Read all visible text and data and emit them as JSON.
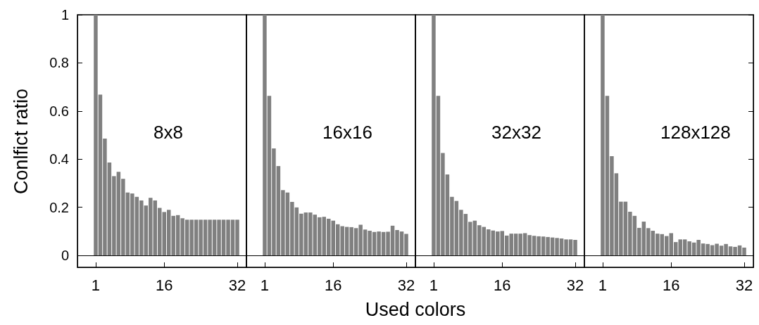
{
  "chart_data": [
    {
      "type": "bar",
      "ylabel": "Conlfict ratio",
      "annotations": [
        "8x8"
      ],
      "color": "#808080",
      "x": [
        1,
        2,
        3,
        4,
        5,
        6,
        7,
        8,
        9,
        10,
        11,
        12,
        13,
        14,
        15,
        16,
        17,
        18,
        19,
        20,
        21,
        22,
        23,
        24,
        25,
        26,
        27,
        28,
        29,
        30,
        31,
        32
      ],
      "values": [
        1.0,
        0.668,
        0.485,
        0.386,
        0.329,
        0.347,
        0.318,
        0.261,
        0.257,
        0.243,
        0.228,
        0.207,
        0.239,
        0.228,
        0.197,
        0.18,
        0.189,
        0.164,
        0.167,
        0.154,
        0.148,
        0.148,
        0.148,
        0.148,
        0.148,
        0.148,
        0.148,
        0.148,
        0.148,
        0.148,
        0.148,
        0.148
      ],
      "xlim": [
        -3,
        34
      ],
      "xticks": [
        1,
        16,
        32
      ],
      "ylim": [
        -0.05,
        1
      ],
      "yticks": [
        0,
        0.2,
        0.4,
        0.6,
        0.8,
        1
      ],
      "grid": false,
      "ref_lines": [
        {
          "axis": "y",
          "value": 0,
          "color": "#000000"
        }
      ]
    },
    {
      "type": "bar",
      "xlabel": "Used colors",
      "annotations": [
        "16x16"
      ],
      "color": "#808080",
      "x": [
        1,
        2,
        3,
        4,
        5,
        6,
        7,
        8,
        9,
        10,
        11,
        12,
        13,
        14,
        15,
        16,
        17,
        18,
        19,
        20,
        21,
        22,
        23,
        24,
        25,
        26,
        27,
        28,
        29,
        30,
        31,
        32
      ],
      "values": [
        1.0,
        0.663,
        0.444,
        0.371,
        0.271,
        0.261,
        0.222,
        0.199,
        0.173,
        0.178,
        0.178,
        0.169,
        0.158,
        0.16,
        0.152,
        0.144,
        0.129,
        0.121,
        0.118,
        0.117,
        0.113,
        0.127,
        0.107,
        0.102,
        0.097,
        0.099,
        0.097,
        0.098,
        0.123,
        0.105,
        0.099,
        0.089
      ],
      "xlim": [
        -3,
        34
      ],
      "xticks": [
        1,
        16,
        32
      ],
      "ylim": [
        -0.05,
        1
      ],
      "yticks": [
        0,
        0.2,
        0.4,
        0.6,
        0.8,
        1
      ],
      "grid": false,
      "tick_labels": "x",
      "ref_lines": [
        {
          "axis": "y",
          "value": 0,
          "color": "#000000"
        }
      ]
    },
    {
      "type": "bar",
      "annotations": [
        "32x32"
      ],
      "color": "#808080",
      "x": [
        1,
        2,
        3,
        4,
        5,
        6,
        7,
        8,
        9,
        10,
        11,
        12,
        13,
        14,
        15,
        16,
        17,
        18,
        19,
        20,
        21,
        22,
        23,
        24,
        25,
        26,
        27,
        28,
        29,
        30,
        31,
        32
      ],
      "values": [
        1.0,
        0.663,
        0.425,
        0.336,
        0.243,
        0.226,
        0.189,
        0.172,
        0.139,
        0.144,
        0.125,
        0.118,
        0.108,
        0.103,
        0.099,
        0.101,
        0.082,
        0.09,
        0.09,
        0.09,
        0.092,
        0.084,
        0.081,
        0.079,
        0.078,
        0.076,
        0.074,
        0.072,
        0.07,
        0.066,
        0.066,
        0.064
      ],
      "xlim": [
        -3,
        34
      ],
      "xticks": [
        1,
        16,
        32
      ],
      "ylim": [
        -0.05,
        1
      ],
      "yticks": [
        0,
        0.2,
        0.4,
        0.6,
        0.8,
        1
      ],
      "grid": false,
      "tick_labels": "x",
      "ref_lines": [
        {
          "axis": "y",
          "value": 0,
          "color": "#000000"
        }
      ]
    },
    {
      "type": "bar",
      "annotations": [
        "128x128"
      ],
      "color": "#808080",
      "x": [
        1,
        2,
        3,
        4,
        5,
        6,
        7,
        8,
        9,
        10,
        11,
        12,
        13,
        14,
        15,
        16,
        17,
        18,
        19,
        20,
        21,
        22,
        23,
        24,
        25,
        26,
        27,
        28,
        29,
        30,
        31,
        32
      ],
      "values": [
        1.0,
        0.663,
        0.412,
        0.341,
        0.223,
        0.223,
        0.181,
        0.164,
        0.114,
        0.14,
        0.113,
        0.102,
        0.09,
        0.088,
        0.08,
        0.092,
        0.055,
        0.066,
        0.066,
        0.058,
        0.053,
        0.064,
        0.049,
        0.047,
        0.042,
        0.048,
        0.04,
        0.047,
        0.037,
        0.035,
        0.041,
        0.032
      ],
      "xlim": [
        -3,
        34
      ],
      "xticks": [
        1,
        16,
        32
      ],
      "ylim": [
        -0.05,
        1
      ],
      "yticks": [
        0,
        0.2,
        0.4,
        0.6,
        0.8,
        1
      ],
      "grid": false,
      "tick_labels": "x",
      "ref_lines": [
        {
          "axis": "y",
          "value": 0,
          "color": "#000000"
        }
      ]
    }
  ]
}
